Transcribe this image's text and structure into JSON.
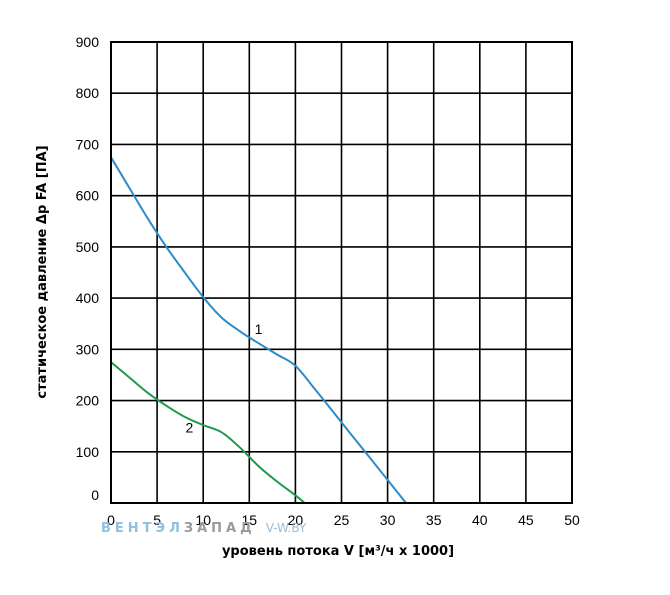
{
  "chart_data": {
    "type": "line",
    "title": "",
    "xlabel": "уровень потока V [м³/ч x 1000]",
    "ylabel": "статическое давление Δp FA [ПА]",
    "xlim": [
      0,
      50
    ],
    "ylim": [
      0,
      900
    ],
    "x_ticks": [
      0,
      5,
      10,
      15,
      20,
      25,
      30,
      35,
      40,
      45,
      50
    ],
    "y_ticks": [
      0,
      100,
      200,
      300,
      400,
      500,
      600,
      700,
      800,
      900
    ],
    "grid": true,
    "series": [
      {
        "name": "1",
        "color": "#2e8bc9",
        "x": [
          0,
          2,
          4,
          6,
          8,
          10,
          12,
          14,
          16,
          18,
          20,
          22,
          24,
          26,
          28,
          30,
          32
        ],
        "y": [
          675,
          615,
          555,
          500,
          450,
          402,
          362,
          335,
          312,
          290,
          268,
          225,
          180,
          135,
          90,
          45,
          0
        ]
      },
      {
        "name": "2",
        "color": "#1e9a4a",
        "x": [
          0,
          2,
          4,
          6,
          8,
          10,
          12,
          14,
          16,
          18,
          20,
          21
        ],
        "y": [
          275,
          245,
          215,
          190,
          168,
          152,
          138,
          108,
          72,
          42,
          15,
          0
        ]
      }
    ],
    "annotations": [
      {
        "text": "1",
        "x": 16,
        "y": 330
      },
      {
        "text": "2",
        "x": 8.5,
        "y": 138
      }
    ]
  },
  "watermark": {
    "part1": "ВЕНТЭЛ",
    "part2": "ЗАПАД",
    "part3": "V-W.BY"
  }
}
